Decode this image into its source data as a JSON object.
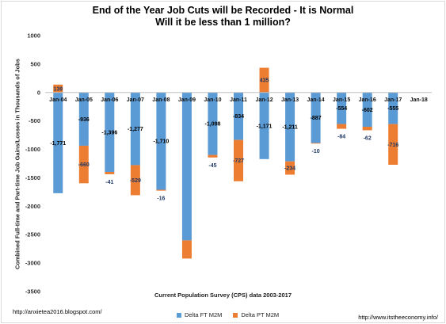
{
  "chart_data": {
    "type": "bar",
    "stacked": true,
    "title": "End of the Year Job Cuts will be Recorded - It is Normal",
    "subtitle": "Will it be less than 1 million?",
    "xlabel": "Current Population Survey (CPS) data 2003-2017",
    "ylabel": "Combined Full-time and Part-time Job Gains/Losses in Thousands of Jobs",
    "ylim": [
      -3500,
      1000
    ],
    "yticks": [
      1000,
      500,
      0,
      -500,
      -1000,
      -1500,
      -2000,
      -2500,
      -3000,
      -3500
    ],
    "categories": [
      "Jan-04",
      "Jan-05",
      "Jan-06",
      "Jan-07",
      "Jan-08",
      "Jan-09",
      "Jan-10",
      "Jan-11",
      "Jan-12",
      "Jan-13",
      "Jan-14",
      "Jan-15",
      "Jan-16",
      "Jan-17",
      "Jan-18"
    ],
    "series": [
      {
        "name": "Delta FT M2M",
        "color": "#5b9bd5",
        "values": [
          -1771,
          -936,
          -1396,
          -1277,
          -1710,
          -2600,
          -1098,
          -834,
          -1171,
          -1211,
          -887,
          -554,
          -602,
          -555,
          null
        ]
      },
      {
        "name": "Delta PT M2M",
        "color": "#ed7d31",
        "values": [
          139,
          -660,
          -41,
          -529,
          -16,
          -320,
          -45,
          -727,
          435,
          -234,
          -10,
          -84,
          -62,
          -716,
          null
        ]
      }
    ],
    "ft_labels": [
      "-1,771",
      "-936",
      "-1,396",
      "-1,277",
      "-1,710",
      "",
      "-1,098",
      "-834",
      "-1,171",
      "-1,211",
      "-887",
      "-554",
      "-602",
      "-555",
      ""
    ],
    "pt_labels": [
      "139",
      "-660",
      "-41",
      "-529",
      "-16",
      "",
      "-45",
      "-727",
      "435",
      "-234",
      "-10",
      "-84",
      "-62",
      "-716",
      ""
    ],
    "legend": "bottom",
    "grid": false
  },
  "footer": {
    "left_url": "http://anxietea2016.blogspot.com/",
    "right_url": "http://www.itstheeconomy.info/"
  }
}
